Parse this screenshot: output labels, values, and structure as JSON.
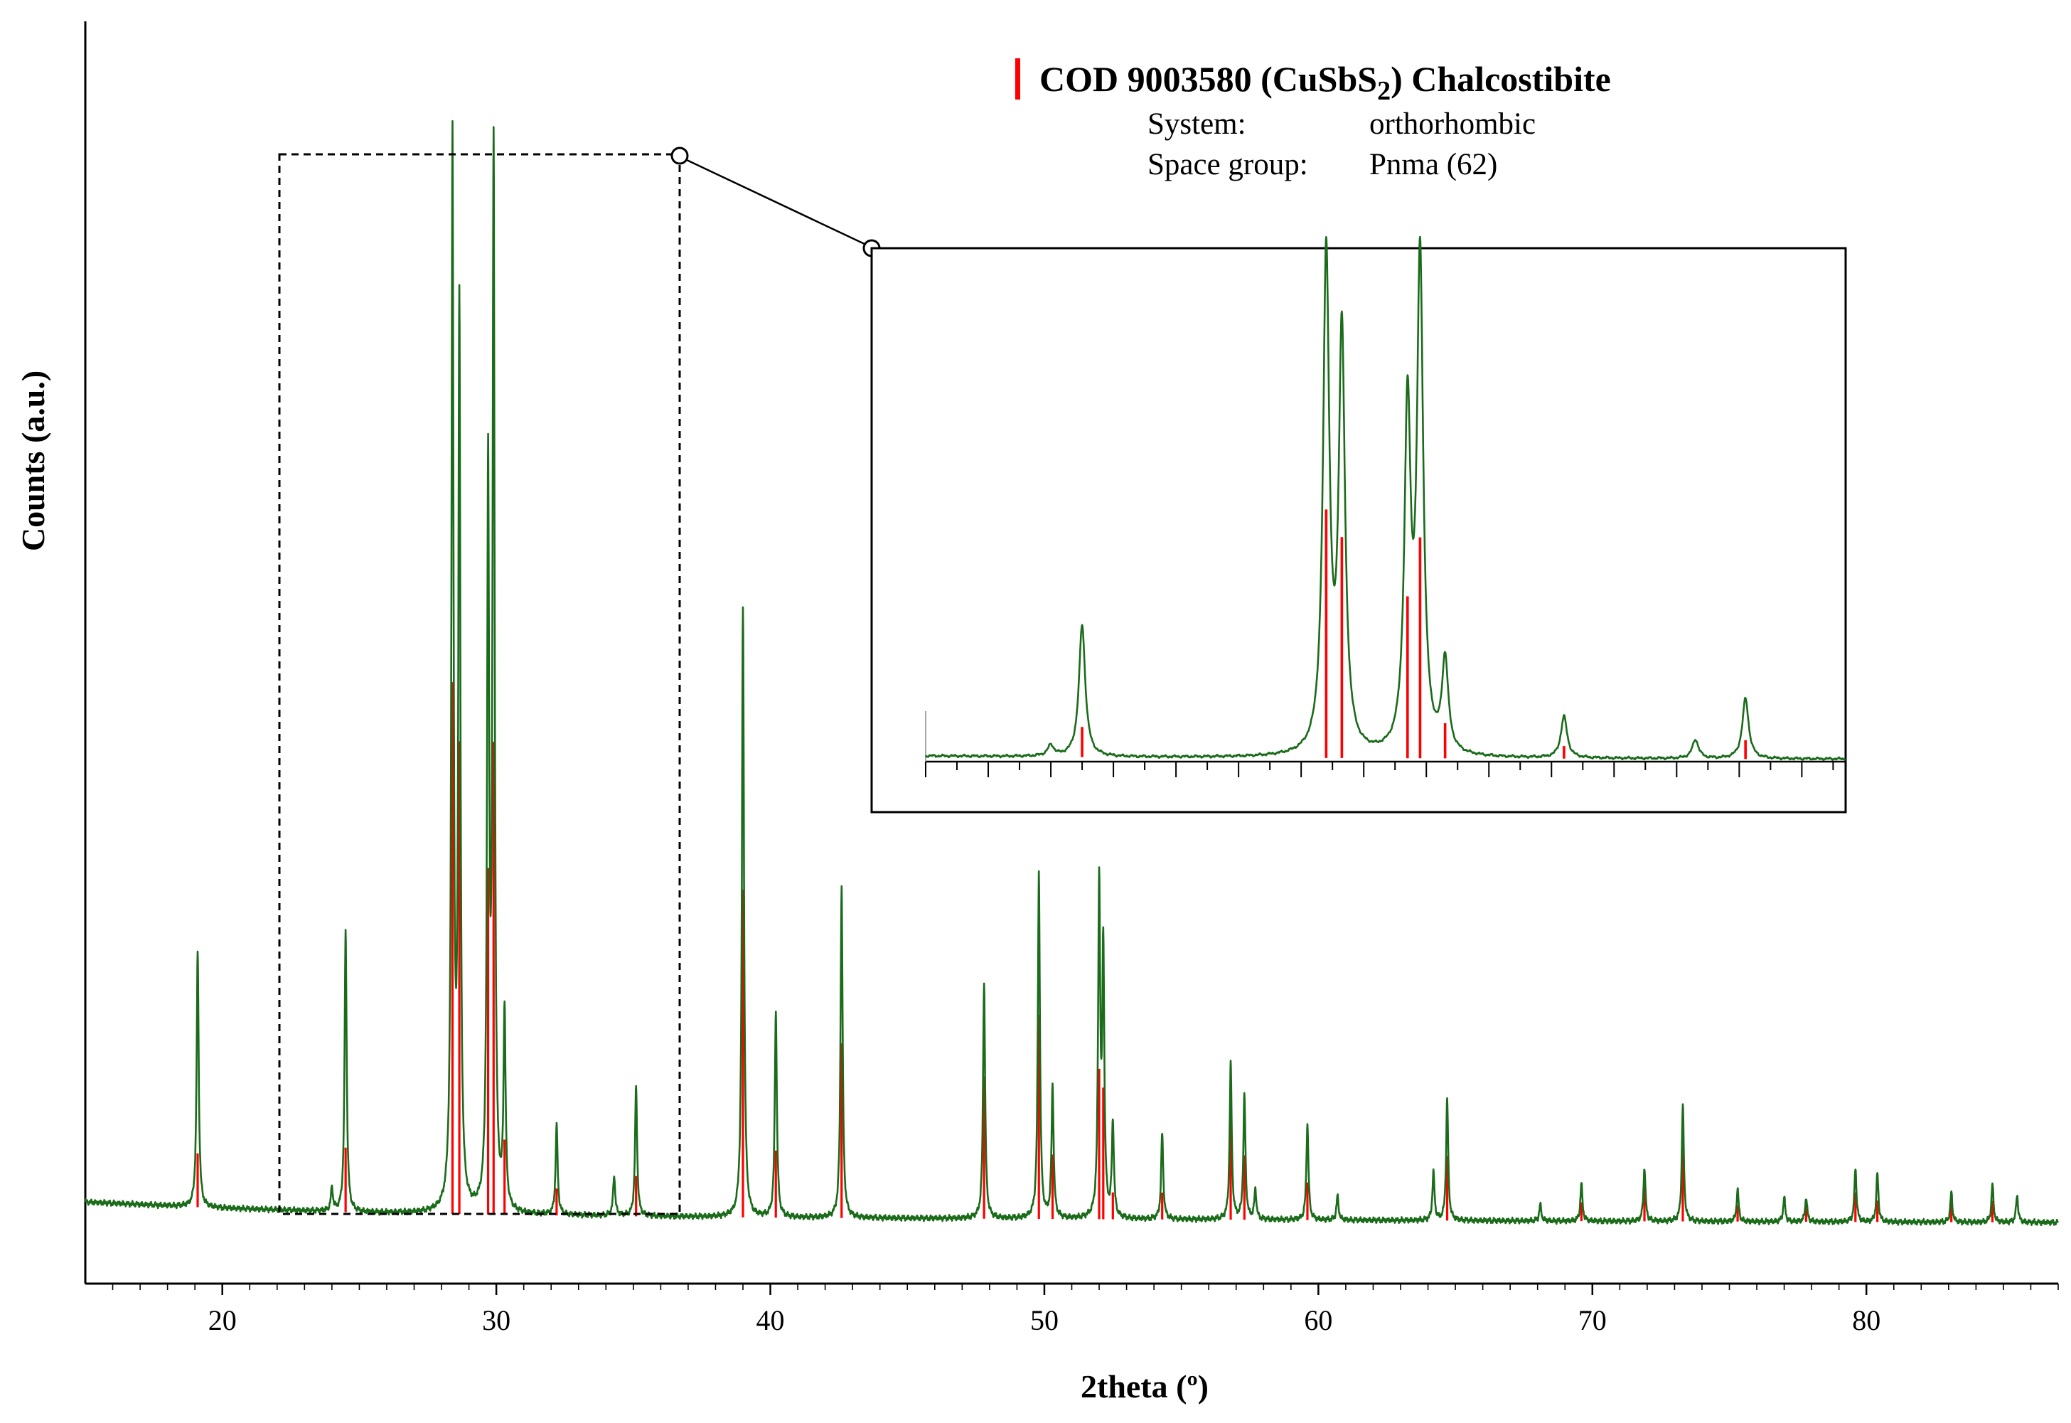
{
  "chart_data": {
    "type": "line",
    "xlabel": "2theta (º)",
    "ylabel": "Counts (a.u.)",
    "xlim": [
      15,
      87
    ],
    "x_ticks": [
      20,
      30,
      40,
      50,
      60,
      70,
      80
    ],
    "y_ticks_shown": false,
    "grid": false,
    "colors": {
      "measured": "#1a6b1a",
      "reference": "#ff0000"
    },
    "legend": {
      "placement": "top-right",
      "marker_color": "#ff0000",
      "title_prefix": "COD 9003580 (CuSbS",
      "title_subscript": "2",
      "title_suffix": ")  Chalcostibite",
      "system_label": "System:",
      "system_value": "orthorhombic",
      "spacegroup_label": "Space group:",
      "spacegroup_value": "Pnma (62)"
    },
    "zoom_region": {
      "x": [
        22,
        36.7
      ],
      "inset": true
    },
    "series": [
      {
        "name": "",
        "kind": "measured_pattern",
        "background": [
          [
            15,
            105
          ],
          [
            20,
            82
          ],
          [
            25,
            66
          ],
          [
            30,
            58
          ],
          [
            35,
            52
          ],
          [
            40,
            47
          ],
          [
            50,
            42
          ],
          [
            60,
            38
          ],
          [
            70,
            34
          ],
          [
            80,
            31
          ],
          [
            87,
            29
          ]
        ],
        "peaks": [
          [
            19.1,
            950
          ],
          [
            24.0,
            85
          ],
          [
            24.5,
            1050
          ],
          [
            28.4,
            3960
          ],
          [
            28.65,
            3320
          ],
          [
            29.7,
            2700
          ],
          [
            29.9,
            3900
          ],
          [
            30.3,
            730
          ],
          [
            32.2,
            330
          ],
          [
            34.3,
            150
          ],
          [
            35.1,
            480
          ],
          [
            39.0,
            2270
          ],
          [
            40.2,
            770
          ],
          [
            42.6,
            1240
          ],
          [
            47.8,
            880
          ],
          [
            49.8,
            1290
          ],
          [
            50.3,
            490
          ],
          [
            52.0,
            1230
          ],
          [
            52.15,
            980
          ],
          [
            52.5,
            350
          ],
          [
            54.3,
            320
          ],
          [
            56.8,
            580
          ],
          [
            57.3,
            460
          ],
          [
            57.7,
            110
          ],
          [
            59.6,
            360
          ],
          [
            60.7,
            90
          ],
          [
            64.2,
            180
          ],
          [
            64.7,
            450
          ],
          [
            68.1,
            60
          ],
          [
            69.6,
            140
          ],
          [
            71.9,
            200
          ],
          [
            73.3,
            430
          ],
          [
            75.3,
            120
          ],
          [
            77.0,
            90
          ],
          [
            77.8,
            90
          ],
          [
            79.6,
            200
          ],
          [
            80.4,
            180
          ],
          [
            83.1,
            110
          ],
          [
            84.6,
            140
          ],
          [
            85.5,
            100
          ]
        ]
      },
      {
        "name": "COD 9003580 (CuSbS2) Chalcostibite",
        "kind": "reference_sticks",
        "sticks": [
          [
            19.1,
            200
          ],
          [
            24.5,
            240
          ],
          [
            28.4,
            1980
          ],
          [
            28.65,
            1760
          ],
          [
            29.7,
            1290
          ],
          [
            29.9,
            1760
          ],
          [
            30.3,
            280
          ],
          [
            32.2,
            100
          ],
          [
            35.1,
            150
          ],
          [
            39.0,
            1220
          ],
          [
            40.2,
            250
          ],
          [
            42.6,
            650
          ],
          [
            47.8,
            530
          ],
          [
            49.8,
            760
          ],
          [
            50.3,
            240
          ],
          [
            52.0,
            560
          ],
          [
            52.15,
            490
          ],
          [
            52.5,
            100
          ],
          [
            54.3,
            100
          ],
          [
            56.8,
            390
          ],
          [
            57.3,
            240
          ],
          [
            59.6,
            140
          ],
          [
            64.7,
            240
          ],
          [
            69.6,
            70
          ],
          [
            71.9,
            130
          ],
          [
            73.3,
            270
          ],
          [
            75.3,
            60
          ],
          [
            77.8,
            60
          ],
          [
            79.6,
            110
          ],
          [
            80.4,
            80
          ],
          [
            83.1,
            70
          ],
          [
            84.6,
            80
          ]
        ]
      }
    ]
  }
}
